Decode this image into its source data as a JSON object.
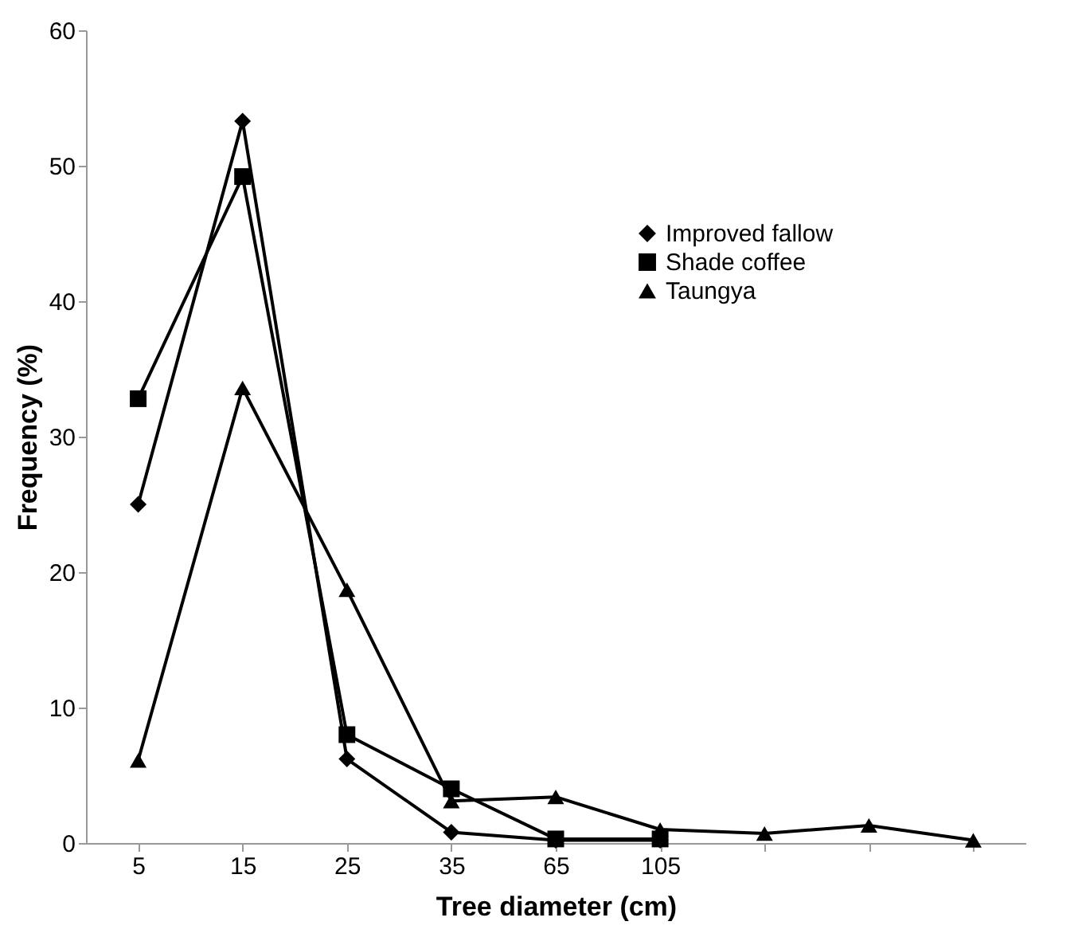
{
  "chart_data": {
    "type": "line",
    "xlabel": "Tree diameter (cm)",
    "ylabel": "Frequency (%)",
    "categories": [
      "5",
      "15",
      "25",
      "35",
      "65",
      "105",
      null,
      null,
      null
    ],
    "ylim": [
      0,
      60
    ],
    "yticks": [
      0,
      10,
      20,
      30,
      40,
      50,
      60
    ],
    "grid": false,
    "legend": "top right",
    "line_style": "solid",
    "series": [
      {
        "name": "Improved fallow",
        "color": "#000000",
        "marker": "diamond",
        "values": [
          25,
          53.3,
          6.2,
          0.8,
          0.2,
          0.2,
          null,
          null,
          null
        ]
      },
      {
        "name": "Shade coffee",
        "color": "#000000",
        "marker": "square",
        "values": [
          32.8,
          49.2,
          8,
          4,
          0.3,
          0.3,
          null,
          null,
          null
        ]
      },
      {
        "name": "Taungya",
        "color": "#000000",
        "marker": "triangle",
        "values": [
          6.1,
          33.6,
          18.7,
          3.1,
          3.4,
          1.0,
          0.7,
          1.3,
          0.2
        ]
      }
    ]
  }
}
